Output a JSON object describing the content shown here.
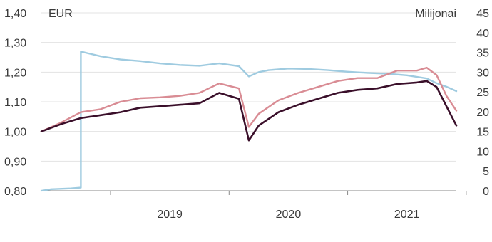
{
  "chart_data": {
    "type": "line",
    "left_axis_unit": "EUR",
    "right_axis_unit": "Milijonai",
    "left_ylim": [
      0.8,
      1.4
    ],
    "right_ylim": [
      0,
      45
    ],
    "left_ticks": [
      "1,40",
      "1,30",
      "1,20",
      "1,10",
      "1,00",
      "0,90",
      "0,80"
    ],
    "right_ticks": [
      "45",
      "40",
      "35",
      "30",
      "25",
      "20",
      "15",
      "10",
      "5",
      "0"
    ],
    "x_domain": [
      "2018-06",
      "2021-12"
    ],
    "year_dividers": [
      "2019-01",
      "2020-01",
      "2021-01",
      "2022-01"
    ],
    "x_labels": [
      {
        "label": "2019",
        "at": "2019-07"
      },
      {
        "label": "2020",
        "at": "2020-07"
      },
      {
        "label": "2021",
        "at": "2021-07"
      }
    ],
    "gridlines": true,
    "colors": {
      "light_blue": "#9fcbe0",
      "pink": "#d98c94",
      "dark": "#3a0f2a"
    },
    "series": [
      {
        "axis": "right",
        "color": "#9fcbe0",
        "points": [
          [
            "2018-06",
            0.0
          ],
          [
            "2018-07",
            0.4
          ],
          [
            "2018-09",
            0.6
          ],
          [
            "2018-10",
            0.8
          ],
          [
            "2018-10",
            35.2
          ],
          [
            "2018-12",
            34.0
          ],
          [
            "2019-02",
            33.2
          ],
          [
            "2019-04",
            32.8
          ],
          [
            "2019-06",
            32.2
          ],
          [
            "2019-08",
            31.8
          ],
          [
            "2019-10",
            31.6
          ],
          [
            "2019-12",
            32.2
          ],
          [
            "2020-02",
            31.5
          ],
          [
            "2020-03",
            28.9
          ],
          [
            "2020-04",
            30.0
          ],
          [
            "2020-05",
            30.5
          ],
          [
            "2020-07",
            30.9
          ],
          [
            "2020-09",
            30.8
          ],
          [
            "2020-11",
            30.5
          ],
          [
            "2021-01",
            30.1
          ],
          [
            "2021-03",
            29.8
          ],
          [
            "2021-05",
            29.6
          ],
          [
            "2021-07",
            29.2
          ],
          [
            "2021-09",
            28.4
          ],
          [
            "2021-10",
            27.2
          ],
          [
            "2021-11",
            26.3
          ],
          [
            "2021-12",
            25.2
          ]
        ]
      },
      {
        "axis": "left",
        "color": "#d98c94",
        "points": [
          [
            "2018-06",
            1.0
          ],
          [
            "2018-08",
            1.03
          ],
          [
            "2018-10",
            1.065
          ],
          [
            "2018-12",
            1.075
          ],
          [
            "2019-02",
            1.1
          ],
          [
            "2019-04",
            1.112
          ],
          [
            "2019-06",
            1.115
          ],
          [
            "2019-08",
            1.12
          ],
          [
            "2019-10",
            1.13
          ],
          [
            "2019-12",
            1.162
          ],
          [
            "2020-02",
            1.145
          ],
          [
            "2020-03",
            1.015
          ],
          [
            "2020-04",
            1.06
          ],
          [
            "2020-06",
            1.105
          ],
          [
            "2020-08",
            1.13
          ],
          [
            "2020-10",
            1.15
          ],
          [
            "2020-12",
            1.17
          ],
          [
            "2021-02",
            1.18
          ],
          [
            "2021-04",
            1.18
          ],
          [
            "2021-06",
            1.205
          ],
          [
            "2021-08",
            1.205
          ],
          [
            "2021-09",
            1.215
          ],
          [
            "2021-10",
            1.19
          ],
          [
            "2021-11",
            1.12
          ],
          [
            "2021-12",
            1.07
          ]
        ]
      },
      {
        "axis": "left",
        "color": "#3a0f2a",
        "points": [
          [
            "2018-06",
            1.0
          ],
          [
            "2018-08",
            1.025
          ],
          [
            "2018-10",
            1.045
          ],
          [
            "2018-12",
            1.055
          ],
          [
            "2019-02",
            1.065
          ],
          [
            "2019-04",
            1.08
          ],
          [
            "2019-06",
            1.085
          ],
          [
            "2019-08",
            1.09
          ],
          [
            "2019-10",
            1.095
          ],
          [
            "2019-12",
            1.13
          ],
          [
            "2020-02",
            1.11
          ],
          [
            "2020-03",
            0.97
          ],
          [
            "2020-04",
            1.02
          ],
          [
            "2020-06",
            1.065
          ],
          [
            "2020-08",
            1.09
          ],
          [
            "2020-10",
            1.11
          ],
          [
            "2020-12",
            1.13
          ],
          [
            "2021-02",
            1.14
          ],
          [
            "2021-04",
            1.145
          ],
          [
            "2021-06",
            1.16
          ],
          [
            "2021-08",
            1.165
          ],
          [
            "2021-09",
            1.17
          ],
          [
            "2021-10",
            1.15
          ],
          [
            "2021-11",
            1.085
          ],
          [
            "2021-12",
            1.02
          ]
        ]
      }
    ]
  }
}
